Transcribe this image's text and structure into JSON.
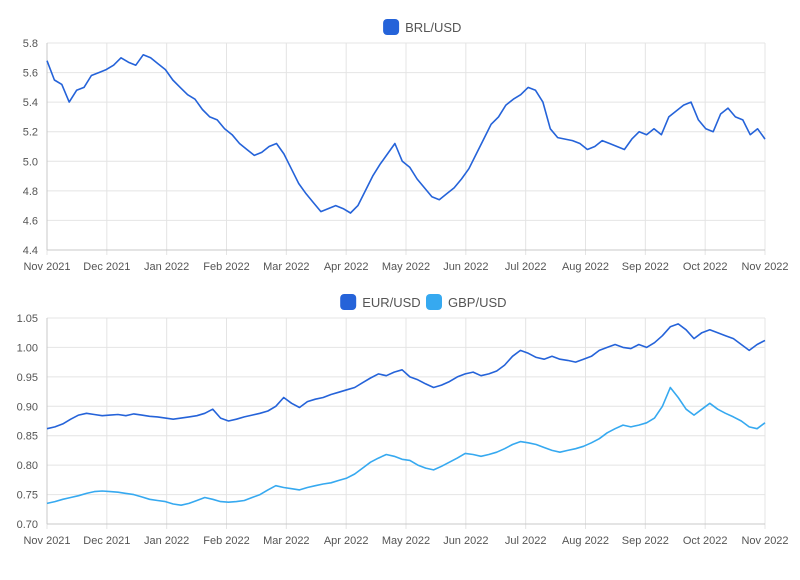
{
  "colors": {
    "eur": "#2563d9",
    "brl": "#2563d9",
    "gbp": "#36a9f0",
    "grid": "#e4e4e4"
  },
  "chart_data": [
    {
      "type": "line",
      "x_ticks": [
        "Nov 2021",
        "Dec 2021",
        "Jan 2022",
        "Feb 2022",
        "Mar 2022",
        "Apr 2022",
        "May 2022",
        "Jun 2022",
        "Jul 2022",
        "Aug 2022",
        "Sep 2022",
        "Oct 2022",
        "Nov 2022"
      ],
      "ylim": [
        4.4,
        5.8
      ],
      "y_ticks": [
        "4.4",
        "4.6",
        "4.8",
        "5.0",
        "5.2",
        "5.4",
        "5.6",
        "5.8"
      ],
      "grid": true,
      "legend_position": "top-center",
      "series": [
        {
          "name": "BRL/USD",
          "color": "#2563d9",
          "values": [
            5.68,
            5.55,
            5.52,
            5.4,
            5.48,
            5.5,
            5.58,
            5.6,
            5.62,
            5.65,
            5.7,
            5.67,
            5.65,
            5.72,
            5.7,
            5.66,
            5.62,
            5.55,
            5.5,
            5.45,
            5.42,
            5.35,
            5.3,
            5.28,
            5.22,
            5.18,
            5.12,
            5.08,
            5.04,
            5.06,
            5.1,
            5.12,
            5.05,
            4.95,
            4.85,
            4.78,
            4.72,
            4.66,
            4.68,
            4.7,
            4.68,
            4.65,
            4.7,
            4.8,
            4.9,
            4.98,
            5.05,
            5.12,
            5.0,
            4.96,
            4.88,
            4.82,
            4.76,
            4.74,
            4.78,
            4.82,
            4.88,
            4.95,
            5.05,
            5.15,
            5.25,
            5.3,
            5.38,
            5.42,
            5.45,
            5.5,
            5.48,
            5.4,
            5.22,
            5.16,
            5.15,
            5.14,
            5.12,
            5.08,
            5.1,
            5.14,
            5.12,
            5.1,
            5.08,
            5.15,
            5.2,
            5.18,
            5.22,
            5.18,
            5.3,
            5.34,
            5.38,
            5.4,
            5.28,
            5.22,
            5.2,
            5.32,
            5.36,
            5.3,
            5.28,
            5.18,
            5.22,
            5.15
          ]
        }
      ]
    },
    {
      "type": "line",
      "x_ticks": [
        "Nov 2021",
        "Dec 2021",
        "Jan 2022",
        "Feb 2022",
        "Mar 2022",
        "Apr 2022",
        "May 2022",
        "Jun 2022",
        "Jul 2022",
        "Aug 2022",
        "Sep 2022",
        "Oct 2022",
        "Nov 2022"
      ],
      "ylim": [
        0.7,
        1.05
      ],
      "y_ticks": [
        "0.70",
        "0.75",
        "0.80",
        "0.85",
        "0.90",
        "0.95",
        "1.00",
        "1.05"
      ],
      "grid": true,
      "legend_position": "top-center",
      "series": [
        {
          "name": "EUR/USD",
          "color": "#2563d9",
          "values": [
            0.862,
            0.865,
            0.87,
            0.878,
            0.885,
            0.888,
            0.886,
            0.884,
            0.885,
            0.886,
            0.884,
            0.887,
            0.885,
            0.883,
            0.882,
            0.88,
            0.878,
            0.88,
            0.882,
            0.884,
            0.888,
            0.895,
            0.88,
            0.875,
            0.878,
            0.882,
            0.885,
            0.888,
            0.892,
            0.9,
            0.915,
            0.905,
            0.898,
            0.908,
            0.912,
            0.915,
            0.92,
            0.924,
            0.928,
            0.932,
            0.94,
            0.948,
            0.955,
            0.952,
            0.958,
            0.962,
            0.95,
            0.945,
            0.938,
            0.932,
            0.936,
            0.942,
            0.95,
            0.955,
            0.958,
            0.952,
            0.955,
            0.96,
            0.97,
            0.985,
            0.995,
            0.99,
            0.983,
            0.98,
            0.985,
            0.98,
            0.978,
            0.975,
            0.98,
            0.985,
            0.995,
            1.0,
            1.005,
            1.0,
            0.998,
            1.005,
            1.0,
            1.008,
            1.02,
            1.035,
            1.04,
            1.03,
            1.015,
            1.025,
            1.03,
            1.025,
            1.02,
            1.015,
            1.005,
            0.995,
            1.005,
            1.012
          ]
        },
        {
          "name": "GBP/USD",
          "color": "#36a9f0",
          "values": [
            0.735,
            0.738,
            0.742,
            0.745,
            0.748,
            0.752,
            0.755,
            0.756,
            0.755,
            0.754,
            0.752,
            0.75,
            0.746,
            0.742,
            0.74,
            0.738,
            0.734,
            0.732,
            0.735,
            0.74,
            0.745,
            0.742,
            0.738,
            0.737,
            0.738,
            0.74,
            0.745,
            0.75,
            0.758,
            0.765,
            0.762,
            0.76,
            0.758,
            0.762,
            0.765,
            0.768,
            0.77,
            0.774,
            0.778,
            0.785,
            0.795,
            0.805,
            0.812,
            0.818,
            0.815,
            0.81,
            0.808,
            0.8,
            0.795,
            0.792,
            0.798,
            0.805,
            0.812,
            0.82,
            0.818,
            0.815,
            0.818,
            0.822,
            0.828,
            0.835,
            0.84,
            0.838,
            0.835,
            0.83,
            0.825,
            0.822,
            0.825,
            0.828,
            0.832,
            0.838,
            0.845,
            0.855,
            0.862,
            0.868,
            0.865,
            0.868,
            0.872,
            0.88,
            0.9,
            0.932,
            0.915,
            0.895,
            0.885,
            0.895,
            0.905,
            0.895,
            0.888,
            0.882,
            0.875,
            0.865,
            0.862,
            0.872
          ]
        }
      ]
    }
  ]
}
